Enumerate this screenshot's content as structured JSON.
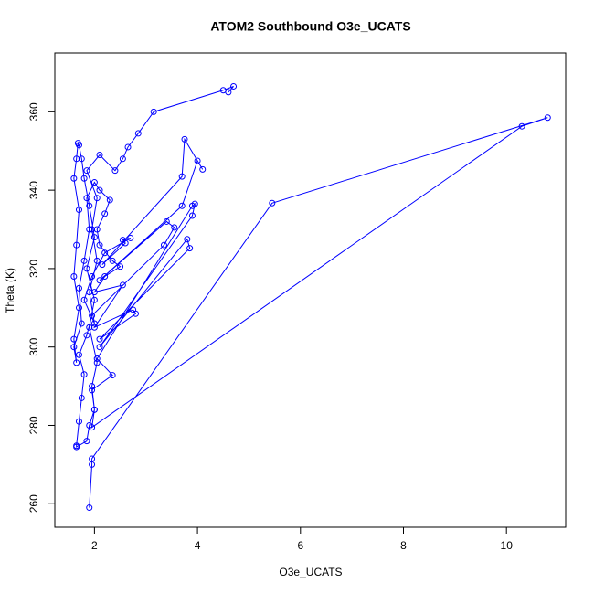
{
  "chart_data": {
    "type": "scatter",
    "title": "ATOM2 Southbound O3e_UCATS",
    "x_label": "O3e_UCATS",
    "y_label": "Theta (K)",
    "color": "#0000ff",
    "lines": true,
    "xlim": [
      1.23,
      11.15
    ],
    "ylim": [
      254,
      375
    ],
    "xticks": [
      2,
      4,
      6,
      8,
      10
    ],
    "yticks": [
      260,
      280,
      300,
      320,
      340,
      360
    ],
    "x": [
      1.9,
      1.95,
      1.95,
      5.45,
      10.8,
      10.3,
      1.95,
      2.0,
      1.95,
      2.05,
      1.9,
      2.0,
      1.85,
      2.0,
      1.9,
      1.8,
      1.75,
      1.7,
      1.68,
      1.65,
      1.6,
      1.7,
      1.65,
      1.6,
      1.7,
      1.6,
      1.65,
      1.6,
      1.75,
      1.7,
      1.8,
      1.9,
      1.85,
      2.0,
      2.1,
      2.3,
      2.2,
      2.05,
      2.1,
      2.35,
      2.5,
      2.2,
      2.0,
      2.55,
      2.0,
      2.75,
      2.8,
      2.1,
      3.85,
      3.8,
      2.1,
      3.9,
      3.95,
      3.9,
      2.05,
      2.35,
      1.95,
      2.0,
      1.9,
      1.85,
      1.65,
      1.65,
      1.7,
      1.75,
      1.8,
      1.7,
      1.85,
      1.95,
      3.35,
      3.55,
      3.4,
      2.1,
      3.7,
      4.0,
      4.1,
      3.75,
      3.7,
      2.15,
      2.6,
      2.55,
      2.7,
      2.2,
      1.95,
      1.8,
      2.0,
      1.9,
      2.05,
      1.95,
      2.05,
      1.85,
      2.1,
      2.4,
      2.55,
      2.65,
      2.85,
      3.15,
      4.5,
      4.7,
      4.6
    ],
    "values": [
      259,
      270,
      271.5,
      336.7,
      358.5,
      356.3,
      279.5,
      284,
      290,
      296,
      305,
      312,
      320,
      328,
      336,
      343,
      348,
      351.5,
      352,
      348,
      343,
      335,
      326,
      318,
      310,
      302,
      296,
      300,
      306,
      315,
      322,
      330,
      338,
      342,
      340,
      337.5,
      334,
      330,
      326,
      322,
      320.5,
      318,
      314,
      315.8,
      305,
      309.5,
      308.5,
      302,
      325.2,
      327.5,
      300,
      333.5,
      336.5,
      336,
      297,
      292.8,
      289,
      284,
      280,
      276,
      274.5,
      274.8,
      281,
      287,
      293,
      298,
      303,
      308,
      326,
      330.5,
      332,
      317,
      336,
      347.5,
      345.3,
      353,
      343.5,
      321,
      326.5,
      327.3,
      327.8,
      324,
      318,
      312,
      306,
      314,
      322,
      330,
      338,
      345,
      349,
      345,
      348,
      351,
      354.5,
      360,
      365.5,
      366.5,
      365
    ]
  }
}
